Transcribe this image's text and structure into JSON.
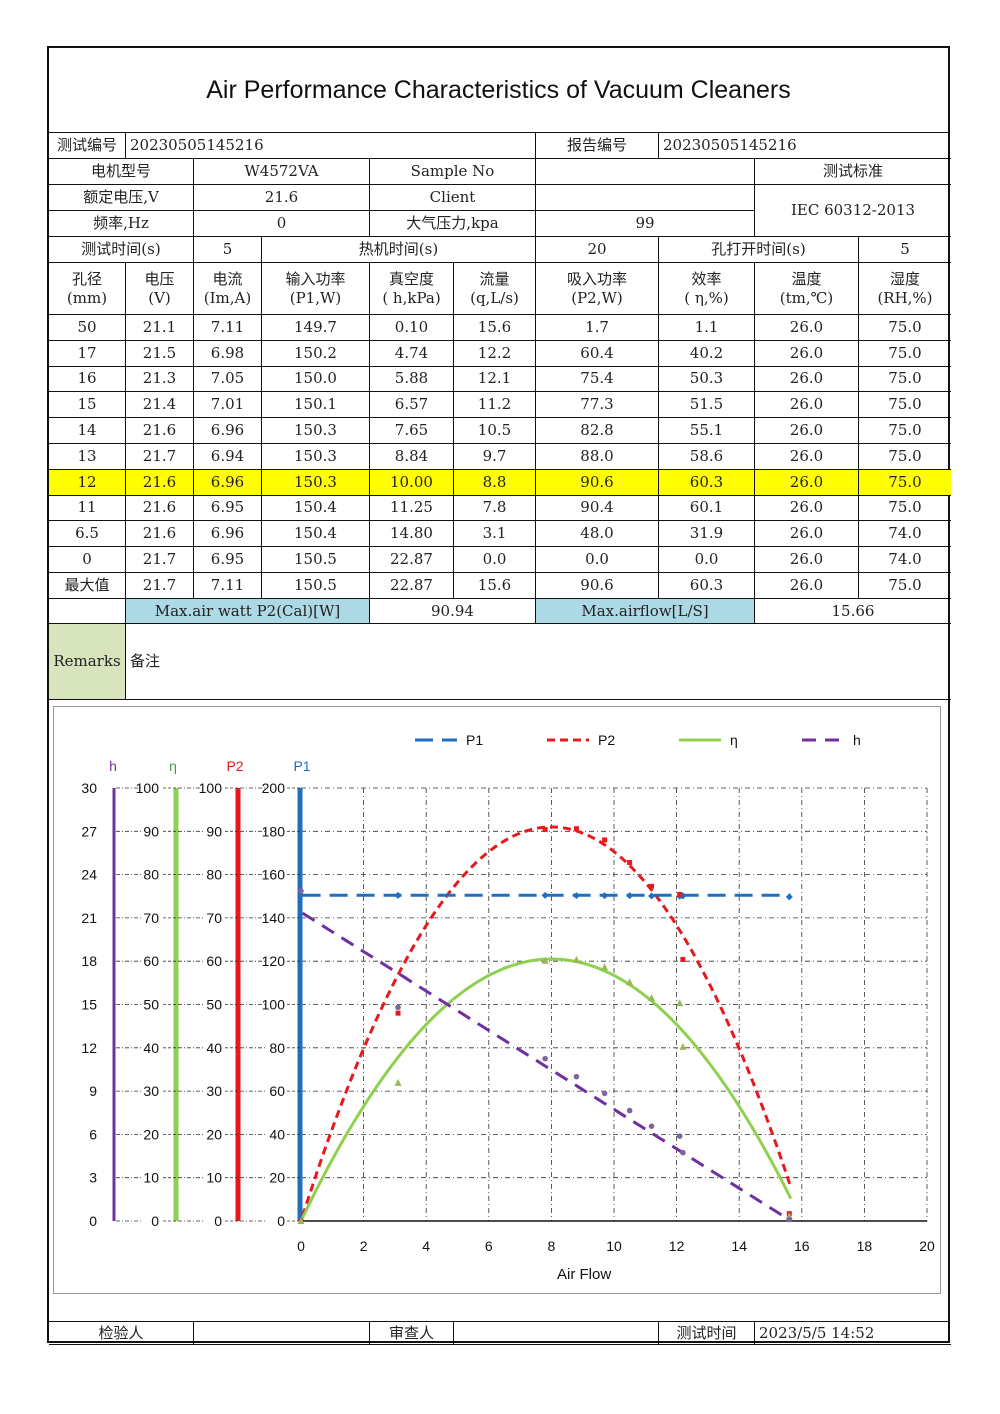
{
  "title": "Air Performance Characteristics of Vacuum Cleaners",
  "header": {
    "test_no_label": "测试编号",
    "test_no": "20230505145216",
    "report_no_label": "报告编号",
    "report_no": "20230505145216",
    "motor_model_label": "电机型号",
    "motor_model": "W4572VA",
    "sample_no_label": "Sample No",
    "standard_label": "测试标准",
    "rated_voltage_label": "额定电压,V",
    "rated_voltage": "21.6",
    "client_label": "Client",
    "standard": "IEC 60312-2013",
    "freq_label": "频率,Hz",
    "freq": "0",
    "pressure_label": "大气压力,kpa",
    "pressure": "99",
    "test_time_label": "测试时间(s)",
    "test_time": "5",
    "warm_time_label": "热机时间(s)",
    "warm_time": "20",
    "open_time_label": "孔打开时间(s)",
    "open_time": "5"
  },
  "columns": [
    {
      "cn": "孔径",
      "unit": "(mm)"
    },
    {
      "cn": "电压",
      "unit": "(V)"
    },
    {
      "cn": "电流",
      "unit": "(Im,A)"
    },
    {
      "cn": "输入功率",
      "unit": "(P1,W)"
    },
    {
      "cn": "真空度",
      "unit": "( h,kPa)"
    },
    {
      "cn": "流量",
      "unit": "(q,L/s)"
    },
    {
      "cn": "吸入功率",
      "unit": "(P2,W)"
    },
    {
      "cn": "效率",
      "unit": "( η,%)"
    },
    {
      "cn": "温度",
      "unit": "(tm,℃)"
    },
    {
      "cn": "湿度",
      "unit": "(RH,%)"
    }
  ],
  "rows": [
    [
      "50",
      "21.1",
      "7.11",
      "149.7",
      "0.10",
      "15.6",
      "1.7",
      "1.1",
      "26.0",
      "75.0"
    ],
    [
      "17",
      "21.5",
      "6.98",
      "150.2",
      "4.74",
      "12.2",
      "60.4",
      "40.2",
      "26.0",
      "75.0"
    ],
    [
      "16",
      "21.3",
      "7.05",
      "150.0",
      "5.88",
      "12.1",
      "75.4",
      "50.3",
      "26.0",
      "75.0"
    ],
    [
      "15",
      "21.4",
      "7.01",
      "150.1",
      "6.57",
      "11.2",
      "77.3",
      "51.5",
      "26.0",
      "75.0"
    ],
    [
      "14",
      "21.6",
      "6.96",
      "150.3",
      "7.65",
      "10.5",
      "82.8",
      "55.1",
      "26.0",
      "75.0"
    ],
    [
      "13",
      "21.7",
      "6.94",
      "150.3",
      "8.84",
      "9.7",
      "88.0",
      "58.6",
      "26.0",
      "75.0"
    ],
    [
      "12",
      "21.6",
      "6.96",
      "150.3",
      "10.00",
      "8.8",
      "90.6",
      "60.3",
      "26.0",
      "75.0"
    ],
    [
      "11",
      "21.6",
      "6.95",
      "150.4",
      "11.25",
      "7.8",
      "90.4",
      "60.1",
      "26.0",
      "75.0"
    ],
    [
      "6.5",
      "21.6",
      "6.96",
      "150.4",
      "14.80",
      "3.1",
      "48.0",
      "31.9",
      "26.0",
      "74.0"
    ],
    [
      "0",
      "21.7",
      "6.95",
      "150.5",
      "22.87",
      "0.0",
      "0.0",
      "0.0",
      "26.0",
      "74.0"
    ],
    [
      "最大值",
      "21.7",
      "7.11",
      "150.5",
      "22.87",
      "15.6",
      "90.6",
      "60.3",
      "26.0",
      "75.0"
    ]
  ],
  "highlight_row": 6,
  "summary": {
    "max_air_watt_label": "Max.air watt P2(Cal)[W]",
    "max_air_watt": "90.94",
    "max_airflow_label": "Max.airflow[L/S]",
    "max_airflow": "15.66"
  },
  "remarks": {
    "label": "Remarks",
    "text": "备注"
  },
  "footer": {
    "inspector_label": "检验人",
    "reviewer_label": "审查人",
    "test_datetime_label": "测试时间",
    "test_datetime": "2023/5/5 14:52"
  },
  "colors": {
    "p1": "#1f6fc0",
    "p2": "#e8191c",
    "eta": "#8fd14f",
    "h": "#7030a0",
    "highlight": "#ffff00",
    "summary_bg": "#add8e6",
    "remarks_bg": "#d8e4bc"
  },
  "chart_data": {
    "type": "scatter",
    "xlabel": "Air Flow",
    "xlim": [
      0,
      20
    ],
    "x_ticks": [
      "0",
      "2",
      "4",
      "6",
      "8",
      "10",
      "12",
      "14",
      "16",
      "18",
      "20"
    ],
    "legend_position": "top",
    "axes": [
      {
        "name": "h",
        "range": [
          0,
          30
        ],
        "ticks": [
          "0",
          "3",
          "6",
          "9",
          "12",
          "15",
          "18",
          "21",
          "24",
          "27",
          "30"
        ]
      },
      {
        "name": "η",
        "range": [
          0,
          100
        ],
        "ticks": [
          "0",
          "10",
          "20",
          "30",
          "40",
          "50",
          "60",
          "70",
          "80",
          "90",
          "100"
        ]
      },
      {
        "name": "P2",
        "range": [
          0,
          100
        ],
        "ticks": [
          "0",
          "10",
          "20",
          "30",
          "40",
          "50",
          "60",
          "70",
          "80",
          "90",
          "100"
        ]
      },
      {
        "name": "P1",
        "range": [
          0,
          200
        ],
        "ticks": [
          "0",
          "20",
          "40",
          "60",
          "80",
          "100",
          "120",
          "140",
          "160",
          "180",
          "200"
        ]
      }
    ],
    "series": [
      {
        "name": "P1",
        "axis": "P1",
        "style": "long-dash",
        "x": [
          15.6,
          12.2,
          12.1,
          11.2,
          10.5,
          9.7,
          8.8,
          7.8,
          3.1,
          0.0
        ],
        "y": [
          149.7,
          150.2,
          150.0,
          150.1,
          150.3,
          150.3,
          150.3,
          150.4,
          150.4,
          150.5
        ]
      },
      {
        "name": "P2",
        "axis": "P2",
        "style": "short-dash",
        "x": [
          15.6,
          12.2,
          12.1,
          11.2,
          10.5,
          9.7,
          8.8,
          7.8,
          3.1,
          0.0
        ],
        "y": [
          1.7,
          60.4,
          75.4,
          77.3,
          82.8,
          88.0,
          90.6,
          90.4,
          48.0,
          0.0
        ]
      },
      {
        "name": "η",
        "axis": "η",
        "style": "solid",
        "x": [
          15.6,
          12.2,
          12.1,
          11.2,
          10.5,
          9.7,
          8.8,
          7.8,
          3.1,
          0.0
        ],
        "y": [
          1.1,
          40.2,
          50.3,
          51.5,
          55.1,
          58.6,
          60.3,
          60.1,
          31.9,
          0.0
        ]
      },
      {
        "name": "h",
        "axis": "h",
        "style": "dash",
        "x": [
          15.6,
          12.2,
          12.1,
          11.2,
          10.5,
          9.7,
          8.8,
          7.8,
          3.1,
          0.0
        ],
        "y": [
          0.1,
          4.74,
          5.88,
          6.57,
          7.65,
          8.84,
          10.0,
          11.25,
          14.8,
          22.87
        ]
      }
    ],
    "fits": [
      {
        "series": "P2",
        "kind": "quadratic",
        "peak_x": 8.0,
        "peak_y": 91
      },
      {
        "series": "η",
        "kind": "quadratic",
        "peak_x": 8.0,
        "peak_y": 60.5
      },
      {
        "series": "h",
        "kind": "linear",
        "intercept": 21.4
      },
      {
        "series": "P1",
        "kind": "constant",
        "value": 150.5
      }
    ]
  }
}
